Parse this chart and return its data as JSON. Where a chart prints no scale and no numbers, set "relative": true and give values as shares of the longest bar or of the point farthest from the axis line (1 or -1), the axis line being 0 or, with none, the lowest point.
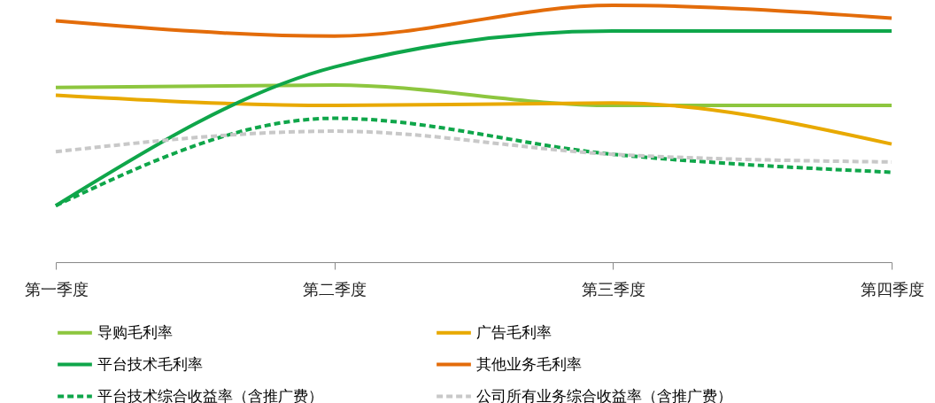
{
  "chart_data": {
    "type": "line",
    "relative": true,
    "categories": [
      "第一季度",
      "第二季度",
      "第三季度",
      "第四季度"
    ],
    "legend": "bottom",
    "grid": false,
    "series": [
      {
        "name": "导购毛利率",
        "color": "#8dc63f",
        "line_style": "solid",
        "values": [
          0.68,
          0.69,
          0.61,
          0.61
        ]
      },
      {
        "name": "广告毛利率",
        "color": "#e8a900",
        "line_style": "solid",
        "values": [
          0.65,
          0.61,
          0.62,
          0.46
        ]
      },
      {
        "name": "平台技术毛利率",
        "color": "#0fa64a",
        "line_style": "solid",
        "values": [
          0.22,
          0.76,
          0.9,
          0.9
        ]
      },
      {
        "name": "其他业务毛利率",
        "color": "#e36c0a",
        "line_style": "solid",
        "values": [
          0.94,
          0.88,
          1,
          0.95
        ]
      },
      {
        "name": "平台技术综合收益率（含推广费）",
        "color": "#0fa64a",
        "line_style": "dashed",
        "values": [
          0.22,
          0.56,
          0.42,
          0.35
        ]
      },
      {
        "name": "公司所有业务综合收益率（含推广费）",
        "color": "#c8c8c8",
        "line_style": "dashed",
        "values": [
          0.43,
          0.51,
          0.42,
          0.39
        ]
      }
    ]
  }
}
